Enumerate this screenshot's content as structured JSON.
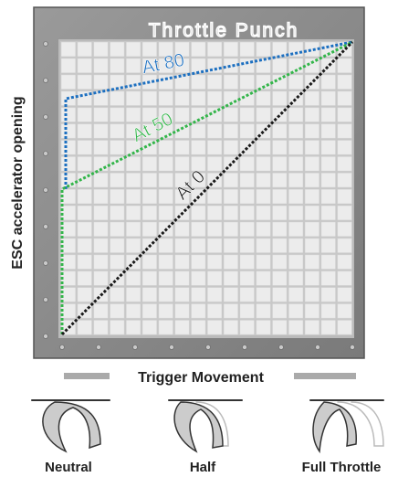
{
  "title": "Throttle Punch",
  "y_axis_label": "ESC accelerator opening",
  "x_axis_label": "Trigger Movement",
  "line_labels": [
    "At 80",
    "At 50",
    "At 0"
  ],
  "trigger_positions": [
    "Neutral",
    "Half",
    "Full Throttle"
  ]
}
